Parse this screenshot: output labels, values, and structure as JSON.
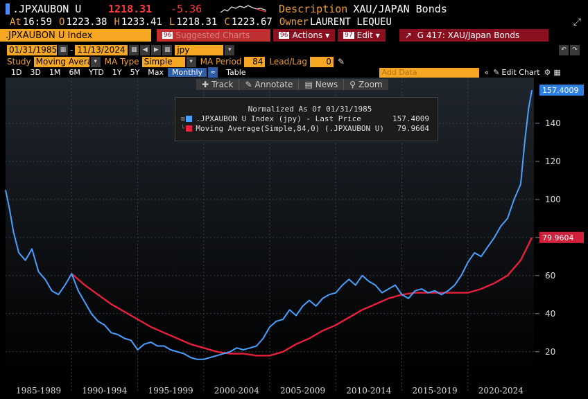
{
  "header": {
    "ticker": ".JPXAUBON U",
    "last": "1218.31",
    "change": "-5.36",
    "description_label": "Description",
    "description": "XAU/JAPAN Bonds",
    "at_label": "At",
    "time": "16:59",
    "open_label": "O",
    "open": "1223.38",
    "high_label": "H",
    "high": "1233.41",
    "low_label": "L",
    "low": "1218.31",
    "close_label": "C",
    "close": "1223.67",
    "owner_label": "Owner",
    "owner": "LAURENT LEQUEU"
  },
  "toolbar": {
    "title": ".JPXAUBON U Index",
    "suggested": "Suggested Charts",
    "suggested_num": "96",
    "actions": "Actions",
    "actions_num": "96",
    "edit": "Edit",
    "edit_num": "97",
    "group": "G 417: XAU/Japan Bonds"
  },
  "controls": {
    "start_date": "01/31/1985",
    "end_date": "11/13/2024",
    "currency": "jpy",
    "study_label": "Study",
    "study_value": "Moving Avera",
    "ma_type_label": "MA Type",
    "ma_type_value": "Simple",
    "ma_period_label": "MA Period",
    "ma_period_value": "84",
    "leadlag_label": "Lead/Lag",
    "leadlag_value": "0",
    "periods": [
      "1D",
      "3D",
      "1M",
      "6M",
      "YTD",
      "1Y",
      "5Y",
      "Max",
      "Monthly",
      "Table"
    ],
    "active_period": "Monthly",
    "add_data_placeholder": "Add Data",
    "edit_chart": "Edit Chart"
  },
  "floating_toolbar": {
    "track": "Track",
    "annotate": "Annotate",
    "news": "News",
    "zoom": "Zoom"
  },
  "colors": {
    "price": "#4aa0ff",
    "ma": "#e8203c",
    "orange": "#f5a623",
    "background": "#000000"
  },
  "chart_data": {
    "type": "line",
    "title": "Normalized As Of 01/31/1985",
    "x_unit": "year",
    "x_range": [
      1985.0,
      2025.0
    ],
    "ylim": [
      9,
      164
    ],
    "yticks": [
      20,
      40,
      60,
      80,
      100,
      120,
      140
    ],
    "xticks": [
      "1985-1989",
      "1990-1994",
      "1995-1999",
      "2000-2004",
      "2005-2009",
      "2010-2014",
      "2015-2019",
      "2020-2024"
    ],
    "grid": true,
    "legend_position": "top-center",
    "series": [
      {
        "name": ".JPXAUBON U Index (jpy) - Last Price",
        "last_value": "157.4009",
        "color": "#4aa0ff",
        "x": [
          1985.0,
          1985.3,
          1985.6,
          1986.0,
          1986.5,
          1987.0,
          1987.5,
          1988.0,
          1988.5,
          1989.0,
          1989.5,
          1990.0,
          1990.5,
          1991.0,
          1991.5,
          1992.0,
          1992.5,
          1993.0,
          1993.5,
          1994.0,
          1994.5,
          1995.0,
          1995.5,
          1996.0,
          1996.5,
          1997.0,
          1997.5,
          1998.0,
          1998.5,
          1999.0,
          1999.5,
          2000.0,
          2000.5,
          2001.0,
          2001.5,
          2002.0,
          2002.5,
          2003.0,
          2003.5,
          2004.0,
          2004.5,
          2005.0,
          2005.5,
          2006.0,
          2006.5,
          2007.0,
          2007.5,
          2008.0,
          2008.5,
          2009.0,
          2009.5,
          2010.0,
          2010.5,
          2011.0,
          2011.5,
          2012.0,
          2012.5,
          2013.0,
          2013.5,
          2014.0,
          2014.5,
          2015.0,
          2015.5,
          2016.0,
          2016.5,
          2017.0,
          2017.5,
          2018.0,
          2018.5,
          2019.0,
          2019.5,
          2020.0,
          2020.5,
          2021.0,
          2021.5,
          2022.0,
          2022.5,
          2023.0,
          2023.5,
          2024.0,
          2024.3,
          2024.6,
          2024.85
        ],
        "values": [
          105,
          95,
          83,
          72,
          68,
          74,
          62,
          58,
          52,
          50,
          55,
          61,
          52,
          46,
          40,
          36,
          34,
          30,
          29,
          27,
          26,
          21,
          24,
          25,
          23,
          23,
          21,
          20,
          19,
          17,
          16,
          16,
          17,
          18,
          19,
          20,
          22,
          21,
          22,
          23,
          27,
          33,
          36,
          37,
          42,
          39,
          44,
          47,
          44,
          48,
          50,
          51,
          55,
          58,
          55,
          60,
          57,
          55,
          51,
          53,
          55,
          50,
          48,
          52,
          53,
          51,
          52,
          50,
          52,
          55,
          60,
          67,
          72,
          70,
          75,
          80,
          86,
          90,
          100,
          108,
          130,
          148,
          157.4
        ]
      },
      {
        "name": "Moving Average(Simple,84,0) (.JPXAUBON U)",
        "last_value": "79.9604",
        "color": "#e8203c",
        "x": [
          1990.0,
          1991.0,
          1992.0,
          1993.0,
          1994.0,
          1995.0,
          1996.0,
          1997.0,
          1998.0,
          1999.0,
          2000.0,
          2001.0,
          2002.0,
          2003.0,
          2004.0,
          2005.0,
          2006.0,
          2007.0,
          2008.0,
          2009.0,
          2010.0,
          2011.0,
          2012.0,
          2013.0,
          2014.0,
          2015.0,
          2016.0,
          2017.0,
          2018.0,
          2019.0,
          2020.0,
          2021.0,
          2022.0,
          2023.0,
          2024.0,
          2024.85
        ],
        "values": [
          61,
          55,
          50,
          45,
          41,
          37,
          33,
          30,
          27,
          24,
          22,
          20,
          19,
          19,
          18,
          18,
          20,
          24,
          27,
          31,
          34,
          38,
          42,
          45,
          48,
          50,
          51,
          51,
          51,
          51,
          51,
          53,
          56,
          60,
          68,
          80.0
        ]
      }
    ]
  }
}
